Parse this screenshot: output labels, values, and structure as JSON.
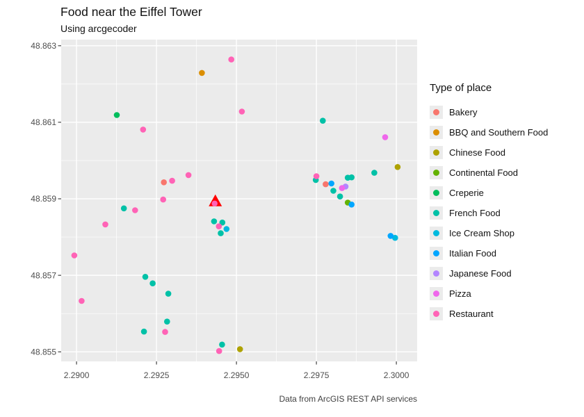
{
  "title": "Food near the Eiffel Tower",
  "subtitle": "Using arcgecoder",
  "caption": "Data from ArcGIS REST API services",
  "colors": {
    "panel": "#EBEBEB",
    "grid": "#FFFFFF",
    "tick": "#333333",
    "axis_text": "#4D4D4D"
  },
  "legend": {
    "title": "Type of place",
    "items": [
      {
        "label": "Bakery",
        "color": "#F8766D"
      },
      {
        "label": "BBQ and Southern Food",
        "color": "#DB8E00"
      },
      {
        "label": "Chinese Food",
        "color": "#AEA200"
      },
      {
        "label": "Continental Food",
        "color": "#64B200"
      },
      {
        "label": "Creperie",
        "color": "#00BD5C"
      },
      {
        "label": "French Food",
        "color": "#00C1A7"
      },
      {
        "label": "Ice Cream Shop",
        "color": "#00BADE"
      },
      {
        "label": "Italian Food",
        "color": "#00A6FF"
      },
      {
        "label": "Japanese Food",
        "color": "#B385FF"
      },
      {
        "label": "Pizza",
        "color": "#EF67EB"
      },
      {
        "label": "Restaurant",
        "color": "#FF63B6"
      }
    ]
  },
  "chart_data": {
    "type": "scatter",
    "title": "Food near the Eiffel Tower",
    "xlabel": "",
    "ylabel": "",
    "legend_position": "right",
    "grid": true,
    "xlim": [
      2.28952,
      2.30065
    ],
    "ylim": [
      48.85475,
      48.86316
    ],
    "x_ticks": {
      "values": [
        2.29,
        2.2925,
        2.295,
        2.2975,
        2.3
      ],
      "labels": [
        "2.2900",
        "2.2925",
        "2.2950",
        "2.2975",
        "2.3000"
      ]
    },
    "y_ticks": {
      "values": [
        48.855,
        48.857,
        48.859,
        48.861,
        48.863
      ],
      "labels": [
        "48.855",
        "48.857",
        "48.859",
        "48.861",
        "48.863"
      ]
    },
    "series": [
      {
        "name": "Bakery",
        "color": "#F8766D",
        "points": [
          [
            2.29273,
            48.85943
          ],
          [
            2.29779,
            48.85938
          ]
        ]
      },
      {
        "name": "BBQ and Southern Food",
        "color": "#DB8E00",
        "points": [
          [
            2.29392,
            48.86229
          ]
        ]
      },
      {
        "name": "Chinese Food",
        "color": "#AEA200",
        "points": [
          [
            2.30004,
            48.85983
          ],
          [
            2.29511,
            48.85507
          ]
        ]
      },
      {
        "name": "Continental Food",
        "color": "#64B200",
        "points": [
          [
            2.29848,
            48.8589
          ]
        ]
      },
      {
        "name": "Creperie",
        "color": "#00BD5C",
        "points": [
          [
            2.29126,
            48.86119
          ]
        ]
      },
      {
        "name": "French Food",
        "color": "#00C1A7",
        "points": [
          [
            2.2977,
            48.86104
          ],
          [
            2.29931,
            48.85968
          ],
          [
            2.29848,
            48.85955
          ],
          [
            2.2986,
            48.85956
          ],
          [
            2.29748,
            48.85949
          ],
          [
            2.29803,
            48.85921
          ],
          [
            2.29824,
            48.85906
          ],
          [
            2.29148,
            48.85875
          ],
          [
            2.2943,
            48.85841
          ],
          [
            2.29456,
            48.85838
          ],
          [
            2.29451,
            48.8581
          ],
          [
            2.29215,
            48.85696
          ],
          [
            2.29238,
            48.85679
          ],
          [
            2.29287,
            48.85652
          ],
          [
            2.29283,
            48.85579
          ],
          [
            2.29211,
            48.85553
          ],
          [
            2.29455,
            48.85519
          ]
        ]
      },
      {
        "name": "Ice Cream Shop",
        "color": "#00BADE",
        "points": [
          [
            2.29469,
            48.85821
          ],
          [
            2.29996,
            48.85798
          ]
        ]
      },
      {
        "name": "Italian Food",
        "color": "#00A6FF",
        "points": [
          [
            2.29797,
            48.8594
          ],
          [
            2.2986,
            48.85885
          ],
          [
            2.29982,
            48.85803
          ]
        ]
      },
      {
        "name": "Japanese Food",
        "color": "#B385FF",
        "points": [
          [
            2.29841,
            48.85932
          ]
        ]
      },
      {
        "name": "Pizza",
        "color": "#EF67EB",
        "points": [
          [
            2.29965,
            48.86061
          ],
          [
            2.2983,
            48.85928
          ]
        ]
      },
      {
        "name": "Restaurant",
        "color": "#FF63B6",
        "points": [
          [
            2.29484,
            48.86264
          ],
          [
            2.29517,
            48.86128
          ],
          [
            2.29208,
            48.86081
          ],
          [
            2.2935,
            48.85962
          ],
          [
            2.2975,
            48.85959
          ],
          [
            2.29299,
            48.85947
          ],
          [
            2.29271,
            48.85898
          ],
          [
            2.29183,
            48.8587
          ],
          [
            2.29445,
            48.85828
          ],
          [
            2.2909,
            48.85833
          ],
          [
            2.28993,
            48.85752
          ],
          [
            2.29016,
            48.85633
          ],
          [
            2.29277,
            48.85552
          ],
          [
            2.29446,
            48.85502
          ]
        ]
      }
    ],
    "annotation": {
      "name": "eiffel-tower-marker",
      "symbol": "triangle",
      "x": 2.29434,
      "y": 48.85895,
      "color": "#FF0000",
      "dot_color": "#FF63B6"
    }
  }
}
